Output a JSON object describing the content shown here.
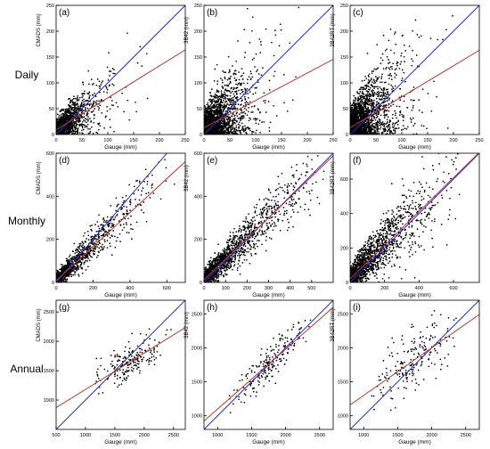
{
  "colors": {
    "points": "#000000",
    "identity_line": "#1f2fd6",
    "fit_line": "#c0392b",
    "axis": "#000000"
  },
  "row_labels": [
    "Daily",
    "Monthly",
    "Annual"
  ],
  "chart_data": [
    {
      "type": "scatter",
      "panel_label": "(a)",
      "xlabel": "Gauge (mm)",
      "ylabel": "CMADS (mm)",
      "xlim": [
        0,
        250
      ],
      "ylim": [
        0,
        250
      ],
      "xticks": [
        0,
        50,
        100,
        150,
        200,
        250
      ],
      "yticks": [
        0,
        50,
        100,
        150,
        200,
        250
      ],
      "point_cloud": {
        "n": 1500,
        "x_median": 18,
        "x_max": 240,
        "slope": 0.7,
        "intercept": 8,
        "scatter_sd": 16
      },
      "lines": {
        "identity": {
          "slope": 1,
          "intercept": 0
        },
        "fit": {
          "slope": 0.62,
          "intercept": 9
        }
      }
    },
    {
      "type": "scatter",
      "panel_label": "(b)",
      "xlabel": "Gauge (mm)",
      "ylabel": "3B42 (mm)",
      "xlim": [
        0,
        250
      ],
      "ylim": [
        0,
        250
      ],
      "xticks": [
        0,
        50,
        100,
        150,
        200,
        250
      ],
      "yticks": [
        0,
        50,
        100,
        150,
        200,
        250
      ],
      "point_cloud": {
        "n": 2200,
        "x_median": 20,
        "x_max": 245,
        "slope": 0.55,
        "intercept": 12,
        "scatter_sd": 32
      },
      "lines": {
        "identity": {
          "slope": 1,
          "intercept": 0
        },
        "fit": {
          "slope": 0.53,
          "intercept": 13
        }
      }
    },
    {
      "type": "scatter",
      "panel_label": "(c)",
      "xlabel": "Gauge (mm)",
      "ylabel": "3B42RT (mm)",
      "xlim": [
        0,
        250
      ],
      "ylim": [
        0,
        250
      ],
      "xticks": [
        0,
        50,
        100,
        150,
        200,
        250
      ],
      "yticks": [
        0,
        50,
        100,
        150,
        200,
        250
      ],
      "point_cloud": {
        "n": 2200,
        "x_median": 20,
        "x_max": 245,
        "slope": 0.6,
        "intercept": 12,
        "scatter_sd": 34
      },
      "lines": {
        "identity": {
          "slope": 1,
          "intercept": 0
        },
        "fit": {
          "slope": 0.6,
          "intercept": 13
        }
      }
    },
    {
      "type": "scatter",
      "panel_label": "(d)",
      "xlabel": "Gauge (mm)",
      "ylabel": "CMADS (mm)",
      "xlim": [
        0,
        700
      ],
      "ylim": [
        0,
        600
      ],
      "xticks": [
        0,
        200,
        400,
        600
      ],
      "yticks": [
        0,
        200,
        400,
        600
      ],
      "point_cloud": {
        "n": 1100,
        "x_median": 90,
        "x_max": 650,
        "slope": 0.82,
        "intercept": 10,
        "scatter_sd": 30
      },
      "lines": {
        "identity": {
          "slope": 1,
          "intercept": 0
        },
        "fit": {
          "slope": 0.79,
          "intercept": 8
        }
      }
    },
    {
      "type": "scatter",
      "panel_label": "(e)",
      "xlabel": "Gauge (mm)",
      "ylabel": "3B42 (mm)",
      "xlim": [
        0,
        600
      ],
      "ylim": [
        0,
        600
      ],
      "xticks": [
        0,
        100,
        200,
        300,
        400,
        500
      ],
      "yticks": [
        0,
        200,
        400,
        600
      ],
      "point_cloud": {
        "n": 1400,
        "x_median": 100,
        "x_max": 560,
        "slope": 0.98,
        "intercept": 15,
        "scatter_sd": 40
      },
      "lines": {
        "identity": {
          "slope": 1,
          "intercept": 0
        },
        "fit": {
          "slope": 0.96,
          "intercept": 12
        }
      }
    },
    {
      "type": "scatter",
      "panel_label": "(f)",
      "xlabel": "Gauge (mm)",
      "ylabel": "3B42RT (mm)",
      "xlim": [
        0,
        750
      ],
      "ylim": [
        0,
        750
      ],
      "xticks": [
        0,
        200,
        400,
        600
      ],
      "yticks": [
        0,
        200,
        400,
        600
      ],
      "point_cloud": {
        "n": 1500,
        "x_median": 110,
        "x_max": 640,
        "slope": 1.03,
        "intercept": 20,
        "scatter_sd": 70
      },
      "lines": {
        "identity": {
          "slope": 1,
          "intercept": 0
        },
        "fit": {
          "slope": 0.98,
          "intercept": 20
        }
      }
    },
    {
      "type": "scatter",
      "panel_label": "(g)",
      "xlabel": "Gauge (mm)",
      "ylabel": "CMADS (mm)",
      "xlim": [
        500,
        2700
      ],
      "ylim": [
        500,
        2700
      ],
      "xticks": [
        500,
        1000,
        1500,
        2000,
        2500
      ],
      "yticks": [
        1000,
        1500,
        2000,
        2500
      ],
      "point_cloud": {
        "n": 200,
        "x_min": 950,
        "x_max": 2550,
        "slope": 0.62,
        "intercept": 560,
        "scatter_sd": 160
      },
      "lines": {
        "identity": {
          "slope": 1,
          "intercept": 0
        },
        "fit": {
          "slope": 0.62,
          "intercept": 560
        }
      }
    },
    {
      "type": "scatter",
      "panel_label": "(h)",
      "xlabel": "Gauge (mm)",
      "ylabel": "3B42 (mm)",
      "xlim": [
        800,
        2700
      ],
      "ylim": [
        800,
        2700
      ],
      "xticks": [
        1000,
        1500,
        2000,
        2500
      ],
      "yticks": [
        1000,
        1500,
        2000,
        2500
      ],
      "point_cloud": {
        "n": 200,
        "x_min": 1000,
        "x_max": 2550,
        "slope": 0.92,
        "intercept": 150,
        "scatter_sd": 140
      },
      "lines": {
        "identity": {
          "slope": 1,
          "intercept": 0
        },
        "fit": {
          "slope": 0.88,
          "intercept": 220
        }
      }
    },
    {
      "type": "scatter",
      "panel_label": "(i)",
      "xlabel": "Gauge (mm)",
      "ylabel": "3B42RT (mm)",
      "xlim": [
        800,
        2700
      ],
      "ylim": [
        800,
        2700
      ],
      "xticks": [
        1000,
        1500,
        2000,
        2500
      ],
      "yticks": [
        1000,
        1500,
        2000,
        2500
      ],
      "point_cloud": {
        "n": 200,
        "x_min": 1000,
        "x_max": 2550,
        "slope": 0.7,
        "intercept": 600,
        "scatter_sd": 200
      },
      "lines": {
        "identity": {
          "slope": 1,
          "intercept": 0
        },
        "fit": {
          "slope": 0.7,
          "intercept": 600
        }
      }
    }
  ]
}
